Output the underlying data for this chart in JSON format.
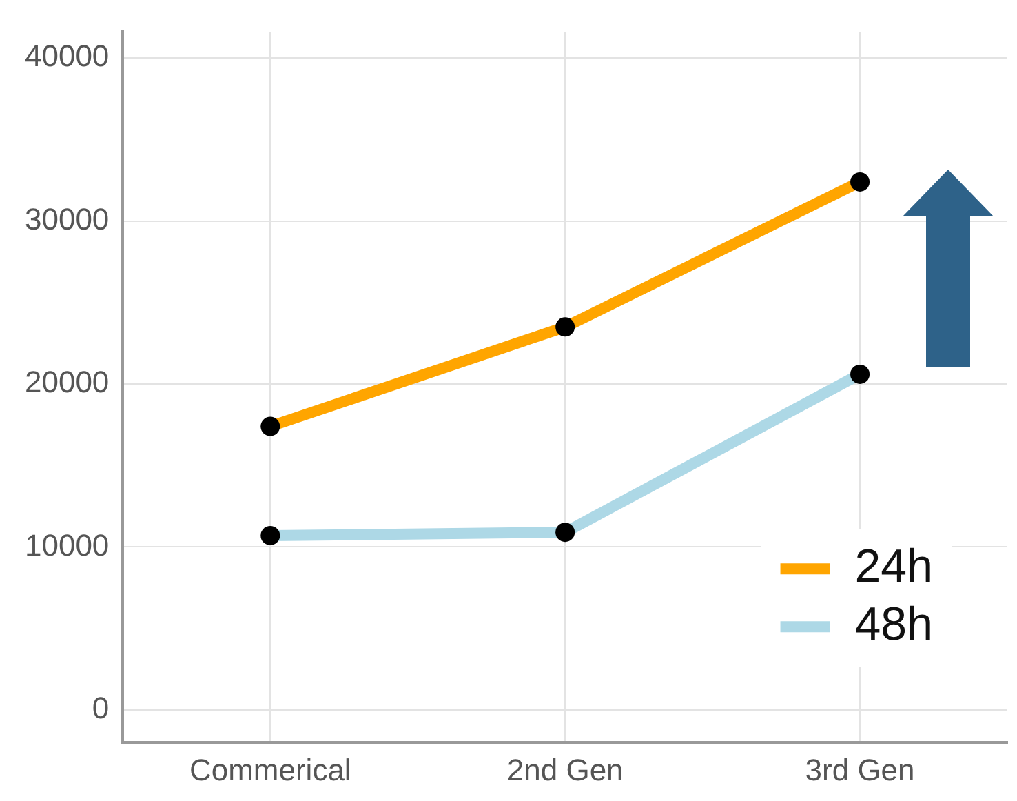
{
  "chart_data": {
    "type": "line",
    "categories": [
      "Commerical",
      "2nd Gen",
      "3rd Gen"
    ],
    "series": [
      {
        "name": "24h",
        "color": "#ffa500",
        "values": [
          17400,
          23500,
          32400
        ]
      },
      {
        "name": "48h",
        "color": "#add8e6",
        "values": [
          10700,
          10900,
          20600
        ]
      }
    ],
    "ylim": [
      -2000,
      41600
    ],
    "yticks": [
      0,
      10000,
      20000,
      30000,
      40000
    ],
    "grid": true,
    "legend": "bottom right",
    "marker": "circle",
    "line_style": "solid"
  }
}
